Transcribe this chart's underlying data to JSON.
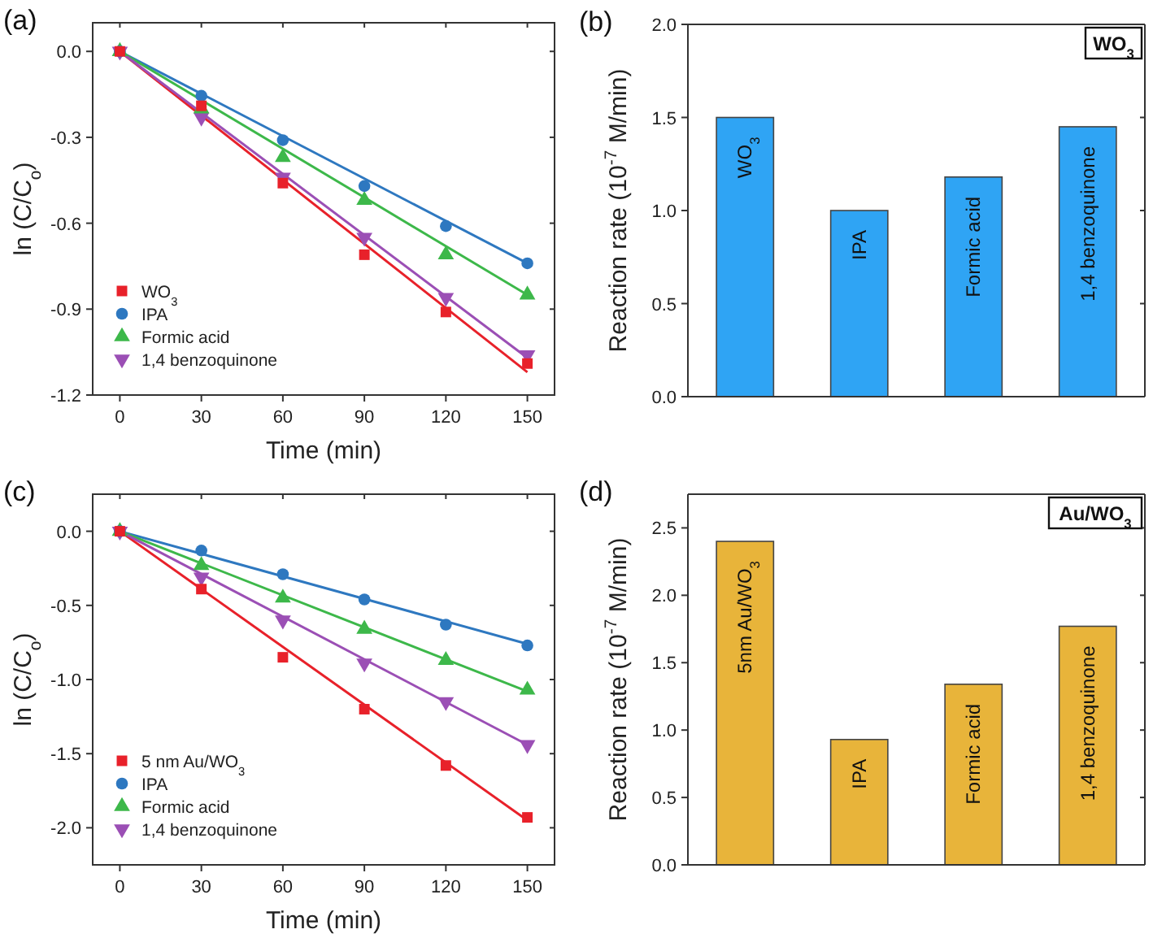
{
  "chart_data": [
    {
      "type": "scatter",
      "title": "(a)",
      "xlabel": "Time (min)",
      "ylabel": "ln (C/C$_{o}$)",
      "xlim": [
        -10,
        160
      ],
      "xticks": [
        0,
        30,
        60,
        90,
        120,
        150
      ],
      "ylim": [
        -1.2,
        0.1
      ],
      "yticks": [
        {
          "value": 0,
          "label": "0.0"
        },
        -0.3,
        -0.6,
        -0.9,
        -1.2
      ],
      "legend": "bottom left",
      "grid": false,
      "series": [
        {
          "name": "WO$_{3}$",
          "color": "#e8212a",
          "marker": "square",
          "x": [
            0,
            30,
            60,
            90,
            120,
            150
          ],
          "values": [
            0,
            -0.19,
            -0.46,
            -0.71,
            -0.91,
            -1.09
          ]
        },
        {
          "name": "IPA",
          "color": "#2e78c0",
          "marker": "circle",
          "x": [
            0,
            30,
            60,
            90,
            120,
            150
          ],
          "values": [
            0,
            -0.155,
            -0.31,
            -0.47,
            -0.61,
            -0.74
          ]
        },
        {
          "name": "Formic acid",
          "color": "#3db84a",
          "marker": "triangle",
          "x": [
            0,
            30,
            60,
            90,
            120,
            150
          ],
          "values": [
            0,
            -0.2,
            -0.37,
            -0.52,
            -0.71,
            -0.85
          ]
        },
        {
          "name": "1,4 benzoquinone",
          "color": "#9b4fb5",
          "marker": "triangle-down",
          "x": [
            0,
            30,
            60,
            90,
            120,
            150
          ],
          "values": [
            0,
            -0.23,
            -0.44,
            -0.65,
            -0.86,
            -1.06
          ]
        },
        {
          "type": "line",
          "color": "#e8212a",
          "x": [
            0,
            150
          ],
          "values": [
            0,
            -1.12
          ]
        },
        {
          "type": "line",
          "color": "#2e78c0",
          "x": [
            0,
            150
          ],
          "values": [
            0,
            -0.74
          ]
        },
        {
          "type": "line",
          "color": "#3db84a",
          "x": [
            0,
            150
          ],
          "values": [
            0,
            -0.85
          ]
        },
        {
          "type": "line",
          "color": "#9b4fb5",
          "x": [
            0,
            150
          ],
          "values": [
            0,
            -1.07
          ]
        }
      ]
    },
    {
      "type": "bar",
      "title": "(b)",
      "ylabel": "Reaction rate (10$^{-7}$ M/min)",
      "ylim": [
        0,
        2
      ],
      "yticks": [
        {
          "value": 0,
          "label": "0.0"
        },
        0.5,
        {
          "value": 1,
          "label": "1.0"
        },
        1.5,
        {
          "value": 2,
          "label": "2.0"
        }
      ],
      "categories": [
        "WO$_{3}$",
        "IPA",
        "Formic acid",
        "1,4 benzoquinone"
      ],
      "values": [
        1.5,
        1.0,
        1.18,
        1.45
      ],
      "color": "#2fa4f4",
      "annotations": [
        "WO$_{3}$"
      ]
    },
    {
      "type": "scatter",
      "title": "(c)",
      "xlabel": "Time (min)",
      "ylabel": "ln (C/C$_{o}$)",
      "xlim": [
        -10,
        160
      ],
      "xticks": [
        0,
        30,
        60,
        90,
        120,
        150
      ],
      "ylim": [
        -2.25,
        0.25
      ],
      "yticks": [
        {
          "value": 0,
          "label": "0.0"
        },
        -0.5,
        {
          "value": -1,
          "label": "-1.0"
        },
        -1.5,
        {
          "value": -2,
          "label": "-2.0"
        }
      ],
      "legend": "bottom left",
      "grid": false,
      "series": [
        {
          "name": "5 nm Au/WO$_{3}$",
          "color": "#e8212a",
          "marker": "square",
          "x": [
            0,
            30,
            60,
            90,
            120,
            150
          ],
          "values": [
            0,
            -0.39,
            -0.85,
            -1.2,
            -1.58,
            -1.93
          ]
        },
        {
          "name": "IPA",
          "color": "#2e78c0",
          "marker": "circle",
          "x": [
            0,
            30,
            60,
            90,
            120,
            150
          ],
          "values": [
            0,
            -0.13,
            -0.29,
            -0.46,
            -0.63,
            -0.77
          ]
        },
        {
          "name": "Formic acid",
          "color": "#3db84a",
          "marker": "triangle",
          "x": [
            0,
            30,
            60,
            90,
            120,
            150
          ],
          "values": [
            0,
            -0.23,
            -0.45,
            -0.66,
            -0.87,
            -1.07
          ]
        },
        {
          "name": "1,4 benzoquinone",
          "color": "#9b4fb5",
          "marker": "triangle-down",
          "x": [
            0,
            30,
            60,
            90,
            120,
            150
          ],
          "values": [
            0,
            -0.31,
            -0.6,
            -0.89,
            -1.15,
            -1.44
          ]
        },
        {
          "type": "line",
          "color": "#e8212a",
          "x": [
            0,
            150
          ],
          "values": [
            0,
            -1.95
          ]
        },
        {
          "type": "line",
          "color": "#2e78c0",
          "x": [
            0,
            150
          ],
          "values": [
            0,
            -0.76
          ]
        },
        {
          "type": "line",
          "color": "#3db84a",
          "x": [
            0,
            150
          ],
          "values": [
            0,
            -1.08
          ]
        },
        {
          "type": "line",
          "color": "#9b4fb5",
          "x": [
            0,
            150
          ],
          "values": [
            0,
            -1.44
          ]
        }
      ]
    },
    {
      "type": "bar",
      "title": "(d)",
      "ylabel": "Reaction rate (10$^{-7}$ M/min)",
      "ylim": [
        0,
        2.75
      ],
      "yticks": [
        {
          "value": 0,
          "label": "0.0"
        },
        0.5,
        {
          "value": 1,
          "label": "1.0"
        },
        1.5,
        {
          "value": 2,
          "label": "2.0"
        },
        2.5
      ],
      "categories": [
        "5nm Au/WO$_{3}$",
        "IPA",
        "Formic acid",
        "1,4 benzoquinone"
      ],
      "values": [
        2.4,
        0.93,
        1.34,
        1.77
      ],
      "color": "#e8b43a",
      "annotations": [
        "Au/WO$_{3}$"
      ]
    }
  ]
}
